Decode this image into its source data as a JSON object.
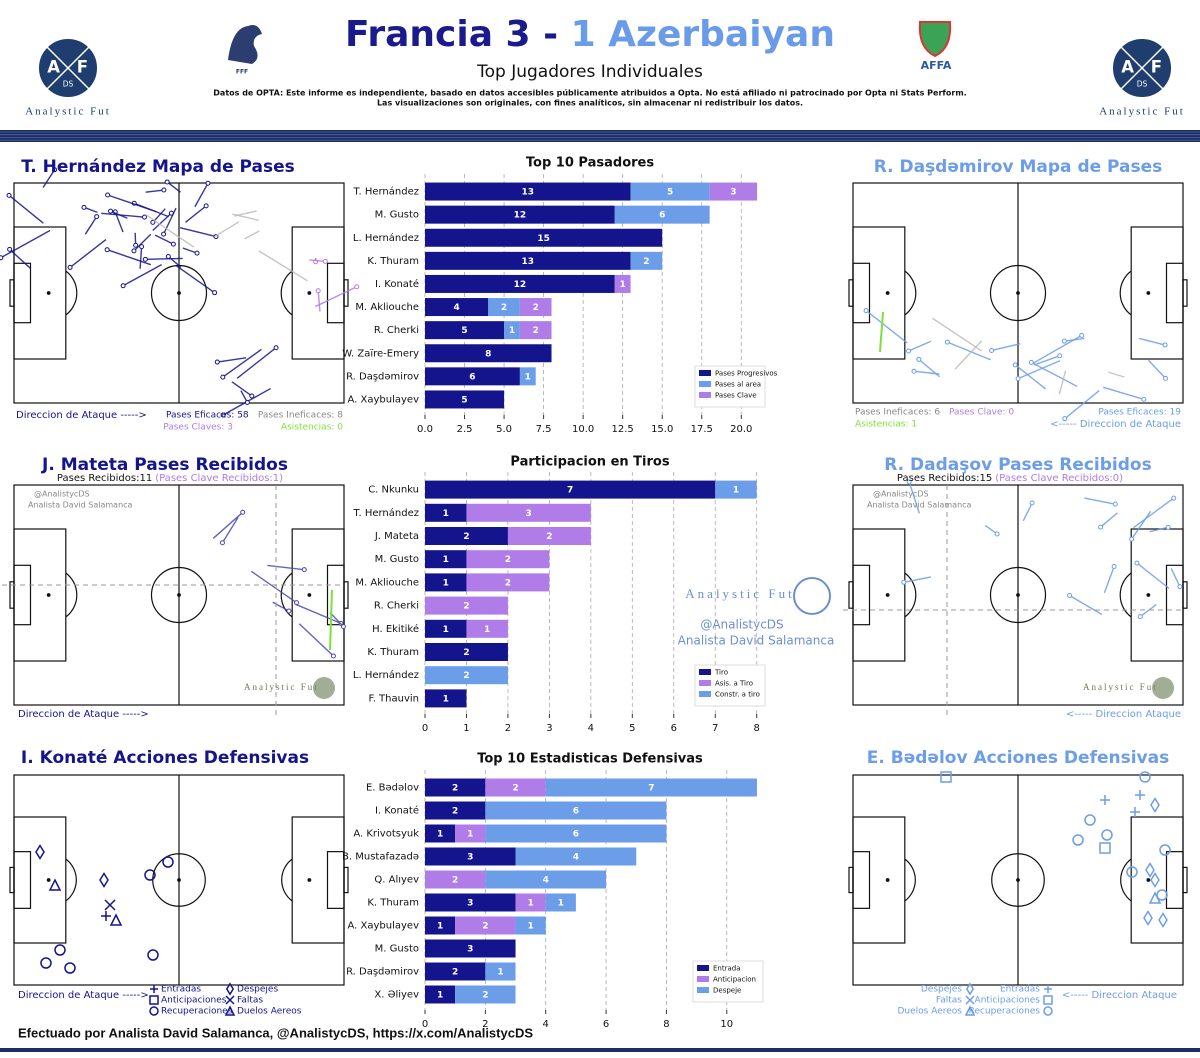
{
  "header": {
    "home": "Francia 3",
    "separator": " - ",
    "away": "1 Azerbaiyan",
    "subtitle": "Top Jugadores Individuales",
    "disclaimer": [
      "Datos de OPTA: Este informe es independiente, basado en datos accesibles públicamente atribuidos a Opta. No está afiliado ni patrocinado por Opta ni Stats Perform.",
      "Las visualizaciones son originales, con fines analíticos, sin almacenar ni redistribuir los datos."
    ],
    "logo_letters": [
      "A",
      "F",
      "DS"
    ],
    "logo_text": "Analystic Fut",
    "home_badge": "FFF",
    "away_badge": "AFFA"
  },
  "panels": {
    "home_passes": {
      "title": "T. Hernández Mapa de Pases",
      "direction": "Direccion de Ataque ----->",
      "stats": [
        "Pases Eficaces: 58",
        "Pases Ineficaces: 8",
        "Pases Claves: 3",
        "Asistencias: 0"
      ]
    },
    "away_passes": {
      "title": "R. Daşdəmirov Mapa de Pases",
      "direction": "<----- Direccion de Ataque",
      "stats": [
        "Pases Ineficaces: 6",
        "Pases Clave: 0",
        "Pases Eficaces: 19",
        "Asistencias: 1"
      ]
    },
    "home_received": {
      "title": "J. Mateta Pases Recibidos",
      "received": "Pases Recibidos:11",
      "key_received": "(Pases Clave Recibidos:1)",
      "direction": "Direccion de Ataque ----->"
    },
    "away_received": {
      "title": "R. Dadaşov Pases Recibidos",
      "received": "Pases Recibidos:15",
      "key_received": "(Pases Clave Recibidos:0)",
      "direction": "<----- Direccion Ataque"
    },
    "home_defense": {
      "title": "I. Konaté Acciones Defensivas",
      "direction": "Direccion de Ataque ----->"
    },
    "away_defense": {
      "title": "E. Bədəlov Acciones Defensivas",
      "direction": "<----- Direccion Ataque"
    },
    "defense_legend": [
      "Entradas",
      "Despejes",
      "Anticipaciones",
      "Faltas",
      "Recuperaciones",
      "Duelos Aereos"
    ],
    "watermark": {
      "handle": "@AnalistycDS",
      "author": "Analista David Salamanca"
    }
  },
  "chart_data": [
    {
      "type": "bar",
      "orientation": "horizontal",
      "stacked": true,
      "title": "Top 10 Pasadores",
      "categories": [
        "T. Hernández",
        "M. Gusto",
        "L. Hernández",
        "K. Thuram",
        "I. Konaté",
        "M. Akliouche",
        "R. Cherki",
        "W. Zaïre-Emery",
        "R. Daşdəmirov",
        "A. Xaybulayev"
      ],
      "series": [
        {
          "name": "Pases Progresivos",
          "color": "#14148c",
          "values": [
            13,
            12,
            15,
            13,
            12,
            4,
            5,
            8,
            6,
            5
          ]
        },
        {
          "name": "Pases al area",
          "color": "#6c9de8",
          "values": [
            5,
            6,
            null,
            2,
            null,
            2,
            1,
            null,
            1,
            null
          ]
        },
        {
          "name": "Pases Clave",
          "color": "#b07ce8",
          "values": [
            3,
            null,
            null,
            null,
            1,
            2,
            2,
            null,
            null,
            null
          ]
        }
      ],
      "xlim": [
        0,
        21.5
      ],
      "xticks": [
        {
          "value": 0,
          "label": "0.0"
        },
        2.5,
        {
          "value": 5,
          "label": "5.0"
        },
        7.5,
        {
          "value": 10,
          "label": "10.0"
        },
        12.5,
        {
          "value": 15,
          "label": "15.0"
        },
        17.5,
        {
          "value": 20,
          "label": "20.0"
        }
      ],
      "grid": true,
      "legend": "lower right"
    },
    {
      "type": "bar",
      "orientation": "horizontal",
      "stacked": true,
      "title": "Participacion en Tiros",
      "categories": [
        "C. Nkunku",
        "T. Hernández",
        "J. Mateta",
        "M. Gusto",
        "M. Akliouche",
        "R. Cherki",
        "H. Ekitiké",
        "K. Thuram",
        "L. Hernández",
        "F. Thauvin"
      ],
      "series": [
        {
          "name": "Tiro",
          "color": "#14148c",
          "values": [
            7,
            1,
            2,
            1,
            1,
            null,
            1,
            2,
            null,
            1
          ]
        },
        {
          "name": "Asis. a Tiro",
          "color": "#b07ce8",
          "values": [
            null,
            3,
            2,
            2,
            2,
            2,
            1,
            null,
            null,
            null
          ]
        },
        {
          "name": "Constr. a tiro",
          "color": "#6c9de8",
          "values": [
            1,
            null,
            null,
            null,
            null,
            null,
            null,
            null,
            2,
            null
          ]
        }
      ],
      "xlim": [
        0,
        8.2
      ],
      "xticks": [
        0,
        1,
        2,
        3,
        4,
        5,
        6,
        7,
        8
      ],
      "grid": true,
      "legend": "lower right"
    },
    {
      "type": "bar",
      "orientation": "horizontal",
      "stacked": true,
      "title": "Top 10 Estadisticas Defensivas",
      "categories": [
        "E. Bədəlov",
        "I. Konaté",
        "A. Krivotsyuk",
        "B. Mustafazadə",
        "Q. Alıyev",
        "K. Thuram",
        "A. Xaybulayev",
        "M. Gusto",
        "R. Daşdəmirov",
        "X. Əliyev"
      ],
      "series": [
        {
          "name": "Entrada",
          "color": "#14148c",
          "values": [
            2,
            2,
            1,
            3,
            null,
            3,
            1,
            3,
            2,
            1
          ]
        },
        {
          "name": "Anticipacion",
          "color": "#b07ce8",
          "values": [
            2,
            null,
            1,
            null,
            2,
            1,
            2,
            null,
            null,
            null
          ]
        },
        {
          "name": "Despeje",
          "color": "#6c9de8",
          "values": [
            7,
            6,
            6,
            4,
            4,
            1,
            1,
            null,
            1,
            2
          ]
        }
      ],
      "xlim": [
        0,
        11.2
      ],
      "xticks": [
        0,
        2,
        4,
        6,
        8,
        10
      ],
      "grid": true,
      "legend": "lower right"
    }
  ],
  "footer": "Efectuado por Analista David Salamanca, @AnalistycDS, https://x.com/AnalistycDS"
}
